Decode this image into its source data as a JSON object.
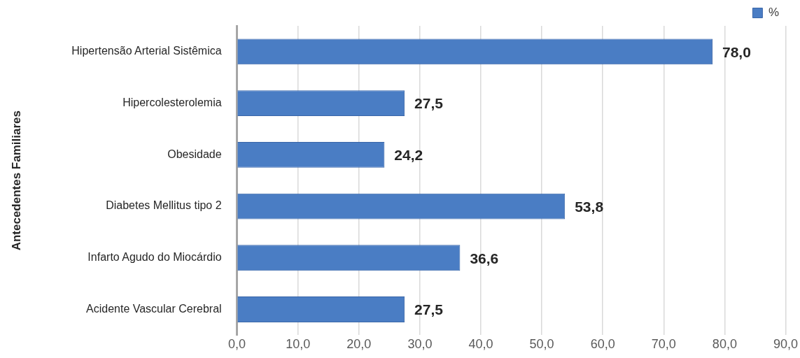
{
  "chart_data": {
    "type": "bar",
    "orientation": "horizontal",
    "ylabel": "Antecedentes Familiares",
    "categories": [
      "Hipertensão Arterial Sistêmica",
      "Hipercolesterolemia",
      "Obesidade",
      "Diabetes Mellitus tipo 2",
      "Infarto Agudo do Miocárdio",
      "Acidente Vascular Cerebral"
    ],
    "series": [
      {
        "name": "%",
        "color": "#4a7dc4",
        "values": [
          78.0,
          27.5,
          24.2,
          53.8,
          36.6,
          27.5
        ],
        "value_labels": [
          "78,0",
          "27,5",
          "24,2",
          "53,8",
          "36,6",
          "27,5"
        ]
      }
    ],
    "xlim": [
      0,
      90
    ],
    "xticks": [
      {
        "value": 0,
        "label": "0,0"
      },
      {
        "value": 10,
        "label": "10,0"
      },
      {
        "value": 20,
        "label": "20,0"
      },
      {
        "value": 30,
        "label": "30,0"
      },
      {
        "value": 40,
        "label": "40,0"
      },
      {
        "value": 50,
        "label": "50,0"
      },
      {
        "value": 60,
        "label": "60,0"
      },
      {
        "value": 70,
        "label": "70,0"
      },
      {
        "value": 80,
        "label": "80,0"
      },
      {
        "value": 90,
        "label": "90,0"
      }
    ],
    "grid": "x",
    "legend": "top right"
  }
}
